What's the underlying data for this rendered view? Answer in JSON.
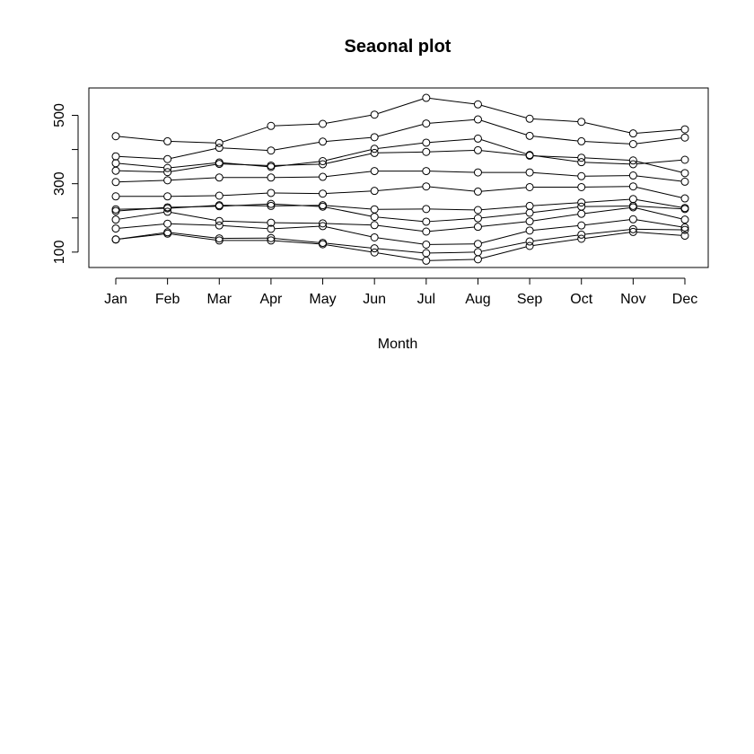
{
  "chart_data": {
    "type": "line",
    "title": "Seaonal plot",
    "xlabel": "Month",
    "ylabel": "",
    "categories": [
      "Jan",
      "Feb",
      "Mar",
      "Apr",
      "May",
      "Jun",
      "Jul",
      "Aug",
      "Sep",
      "Oct",
      "Nov",
      "Dec"
    ],
    "yticks": [
      "100",
      "300",
      "500"
    ],
    "ylim": [
      55,
      580
    ],
    "grid": false,
    "legend": "none",
    "marker": "open-circle",
    "line_color": "#000000",
    "series": [
      {
        "values": [
          137,
          154,
          134,
          134,
          123,
          99,
          75,
          79,
          118,
          139,
          159,
          148
        ]
      },
      {
        "values": [
          137,
          158,
          140,
          141,
          127,
          111,
          97,
          100,
          131,
          151,
          167,
          165
        ]
      },
      {
        "values": [
          169,
          183,
          178,
          168,
          176,
          143,
          122,
          124,
          163,
          178,
          196,
          172
        ]
      },
      {
        "values": [
          195,
          218,
          191,
          186,
          184,
          179,
          160,
          174,
          190,
          212,
          231,
          195
        ]
      },
      {
        "values": [
          220,
          231,
          234,
          241,
          233,
          203,
          189,
          199,
          215,
          233,
          235,
          226
        ]
      },
      {
        "values": [
          225,
          228,
          237,
          235,
          237,
          225,
          226,
          223,
          235,
          245,
          255,
          229
        ]
      },
      {
        "values": [
          263,
          263,
          265,
          273,
          271,
          279,
          292,
          277,
          290,
          290,
          292,
          257
        ]
      },
      {
        "values": [
          305,
          310,
          318,
          318,
          320,
          337,
          337,
          333,
          333,
          322,
          324,
          306
        ]
      },
      {
        "values": [
          338,
          334,
          358,
          353,
          357,
          390,
          393,
          398,
          382,
          376,
          368,
          331
        ]
      },
      {
        "values": [
          360,
          346,
          362,
          349,
          366,
          402,
          420,
          432,
          384,
          363,
          357,
          370
        ]
      },
      {
        "values": [
          380,
          372,
          405,
          397,
          423,
          436,
          476,
          488,
          440,
          424,
          416,
          435
        ]
      },
      {
        "values": [
          439,
          424,
          419,
          469,
          475,
          502,
          551,
          532,
          490,
          481,
          447,
          459
        ]
      }
    ]
  }
}
